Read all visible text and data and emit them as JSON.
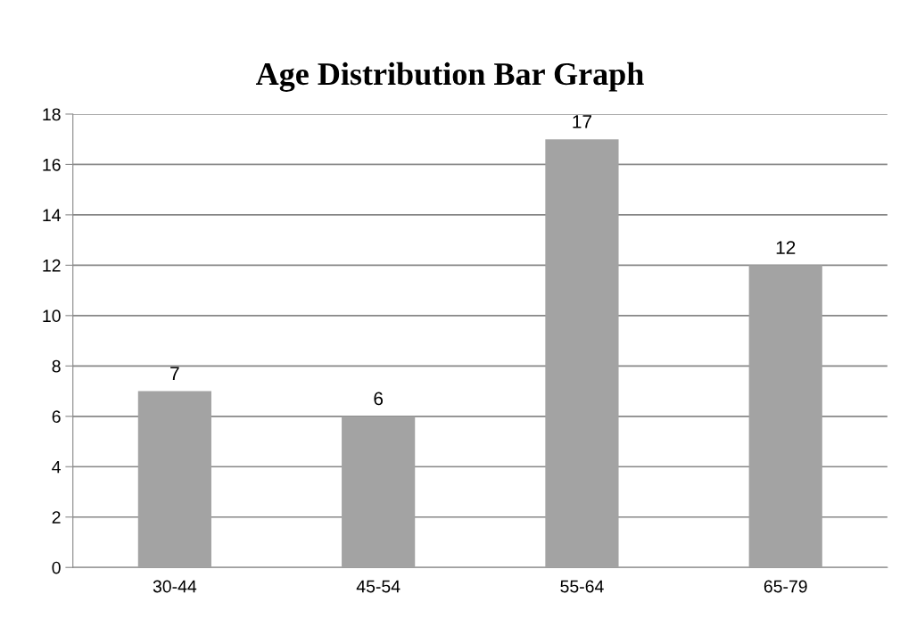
{
  "chart_data": {
    "type": "bar",
    "title": "Age Distribution Bar Graph",
    "categories": [
      "30-44",
      "45-54",
      "55-64",
      "65-79"
    ],
    "values": [
      7,
      6,
      17,
      12
    ],
    "color": "#a3a3a3",
    "ylim": [
      0,
      18
    ],
    "yticks": [
      0,
      2,
      4,
      6,
      8,
      10,
      12,
      14,
      16,
      18
    ],
    "grid": "y",
    "data_labels": true
  }
}
